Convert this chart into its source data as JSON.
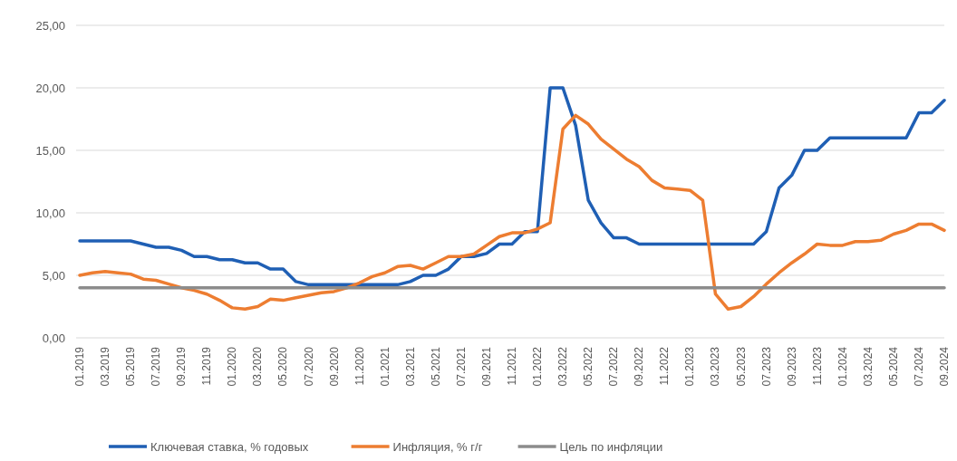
{
  "chart_data": {
    "type": "line",
    "categories": [
      "01.2019",
      null,
      "03.2019",
      null,
      "05.2019",
      null,
      "07.2019",
      null,
      "09.2019",
      null,
      "11.2019",
      null,
      "01.2020",
      null,
      "03.2020",
      null,
      "05.2020",
      null,
      "07.2020",
      null,
      "09.2020",
      null,
      "11.2020",
      null,
      "01.2021",
      null,
      "03.2021",
      null,
      "05.2021",
      null,
      "07.2021",
      null,
      "09.2021",
      null,
      "11.2021",
      null,
      "01.2022",
      null,
      "03.2022",
      null,
      "05.2022",
      null,
      "07.2022",
      null,
      "09.2022",
      null,
      "11.2022",
      null,
      "01.2023",
      null,
      "03.2023",
      null,
      "05.2023",
      null,
      "07.2023",
      null,
      "09.2023",
      null,
      "11.2023",
      null,
      "01.2024",
      null,
      "03.2024",
      null,
      "05.2024",
      null,
      "07.2024",
      null,
      "09.2024"
    ],
    "series": [
      {
        "name": "Ключевая ставка, % годовых",
        "color": "#1f5fb4",
        "values": [
          7.75,
          7.75,
          7.75,
          7.75,
          7.75,
          7.5,
          7.25,
          7.25,
          7.0,
          6.5,
          6.5,
          6.25,
          6.25,
          6.0,
          6.0,
          5.5,
          5.5,
          4.5,
          4.25,
          4.25,
          4.25,
          4.25,
          4.25,
          4.25,
          4.25,
          4.25,
          4.5,
          5.0,
          5.0,
          5.5,
          6.5,
          6.5,
          6.75,
          7.5,
          7.5,
          8.5,
          8.5,
          20,
          20,
          17,
          11,
          9.2,
          8,
          8,
          7.5,
          7.5,
          7.5,
          7.5,
          7.5,
          7.5,
          7.5,
          7.5,
          7.5,
          7.5,
          8.5,
          12,
          13,
          15,
          15,
          16,
          16,
          16,
          16,
          16,
          16,
          16,
          18,
          18,
          19
        ]
      },
      {
        "name": "Инфляция, % г/г",
        "color": "#ed7d31",
        "values": [
          5.0,
          5.2,
          5.3,
          5.2,
          5.1,
          4.7,
          4.6,
          4.3,
          4.0,
          3.8,
          3.5,
          3.0,
          2.4,
          2.3,
          2.5,
          3.1,
          3.0,
          3.2,
          3.4,
          3.6,
          3.7,
          4.0,
          4.4,
          4.9,
          5.2,
          5.7,
          5.8,
          5.5,
          6.0,
          6.5,
          6.5,
          6.7,
          7.4,
          8.1,
          8.4,
          8.4,
          8.7,
          9.2,
          16.7,
          17.8,
          17.1,
          15.9,
          15.1,
          14.3,
          13.7,
          12.6,
          12.0,
          11.9,
          11.8,
          11.0,
          3.5,
          2.3,
          2.5,
          3.3,
          4.3,
          5.2,
          6.0,
          6.7,
          7.5,
          7.4,
          7.4,
          7.7,
          7.7,
          7.8,
          8.3,
          8.6,
          9.1,
          9.1,
          8.6
        ]
      },
      {
        "name": "Цель по инфляции",
        "color": "#8c8c8c",
        "values": [
          4,
          4,
          4,
          4,
          4,
          4,
          4,
          4,
          4,
          4,
          4,
          4,
          4,
          4,
          4,
          4,
          4,
          4,
          4,
          4,
          4,
          4,
          4,
          4,
          4,
          4,
          4,
          4,
          4,
          4,
          4,
          4,
          4,
          4,
          4,
          4,
          4,
          4,
          4,
          4,
          4,
          4,
          4,
          4,
          4,
          4,
          4,
          4,
          4,
          4,
          4,
          4,
          4,
          4,
          4,
          4,
          4,
          4,
          4,
          4,
          4,
          4,
          4,
          4,
          4,
          4,
          4,
          4,
          4
        ]
      }
    ],
    "ylim": [
      0,
      25
    ],
    "yticks": [
      {
        "value": 0,
        "label": "0,00"
      },
      {
        "value": 5,
        "label": "5,00"
      },
      {
        "value": 10,
        "label": "10,00"
      },
      {
        "value": 15,
        "label": "15,00"
      },
      {
        "value": 20,
        "label": "20,00"
      },
      {
        "value": 25,
        "label": "25,00"
      }
    ],
    "grid": "y",
    "legend": "bottom",
    "line_style": "solid",
    "marker": "none"
  }
}
